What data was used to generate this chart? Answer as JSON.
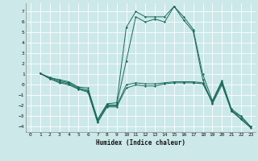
{
  "xlabel": "Humidex (Indice chaleur)",
  "background_color": "#cce8e8",
  "grid_color": "#ffffff",
  "line_color": "#1a6b5a",
  "xlim": [
    -0.5,
    23.5
  ],
  "ylim": [
    -4.5,
    7.8
  ],
  "yticks": [
    -4,
    -3,
    -2,
    -1,
    0,
    1,
    2,
    3,
    4,
    5,
    6,
    7
  ],
  "xticks": [
    0,
    1,
    2,
    3,
    4,
    5,
    6,
    7,
    8,
    9,
    10,
    11,
    12,
    13,
    14,
    15,
    16,
    17,
    18,
    19,
    20,
    21,
    22,
    23
  ],
  "lines": [
    {
      "x": [
        1,
        2,
        3,
        4,
        5,
        6,
        7,
        8,
        9,
        10,
        11,
        12,
        13,
        14,
        15,
        16,
        17,
        18,
        19,
        20,
        21,
        22,
        23
      ],
      "y": [
        1.1,
        0.7,
        0.5,
        0.3,
        -0.2,
        -0.3,
        -3.3,
        -1.8,
        -1.7,
        5.5,
        7.0,
        6.5,
        6.5,
        6.5,
        7.5,
        6.5,
        5.3,
        1.0,
        -1.5,
        0.4,
        -2.3,
        -3.0,
        -4.0
      ]
    },
    {
      "x": [
        1,
        2,
        3,
        4,
        5,
        6,
        7,
        8,
        9,
        10,
        11,
        12,
        13,
        14,
        15,
        16,
        17,
        18,
        19,
        20,
        21,
        22,
        23
      ],
      "y": [
        1.1,
        0.7,
        0.4,
        0.2,
        -0.3,
        -0.5,
        -3.3,
        -1.9,
        -1.9,
        2.3,
        6.5,
        6.0,
        6.3,
        6.0,
        7.5,
        6.2,
        5.1,
        0.5,
        -1.8,
        0.0,
        -2.5,
        -3.0,
        -4.0
      ]
    },
    {
      "x": [
        1,
        2,
        3,
        4,
        5,
        6,
        7,
        8,
        9,
        10,
        11,
        12,
        13,
        14,
        15,
        16,
        17,
        18,
        19,
        20,
        21,
        22,
        23
      ],
      "y": [
        1.1,
        0.6,
        0.3,
        0.1,
        -0.4,
        -0.6,
        -3.5,
        -2.0,
        -2.0,
        0.0,
        0.2,
        0.1,
        0.1,
        0.2,
        0.3,
        0.3,
        0.3,
        0.2,
        -1.6,
        0.3,
        -2.4,
        -3.2,
        -4.0
      ]
    },
    {
      "x": [
        1,
        2,
        3,
        4,
        5,
        6,
        7,
        8,
        9,
        10,
        11,
        12,
        13,
        14,
        15,
        16,
        17,
        18,
        19,
        20,
        21,
        22,
        23
      ],
      "y": [
        1.1,
        0.6,
        0.2,
        0.0,
        -0.4,
        -0.7,
        -3.6,
        -2.1,
        -2.1,
        -0.3,
        0.0,
        -0.1,
        -0.1,
        0.1,
        0.2,
        0.2,
        0.2,
        0.1,
        -1.7,
        0.2,
        -2.5,
        -3.3,
        -4.1
      ]
    }
  ]
}
